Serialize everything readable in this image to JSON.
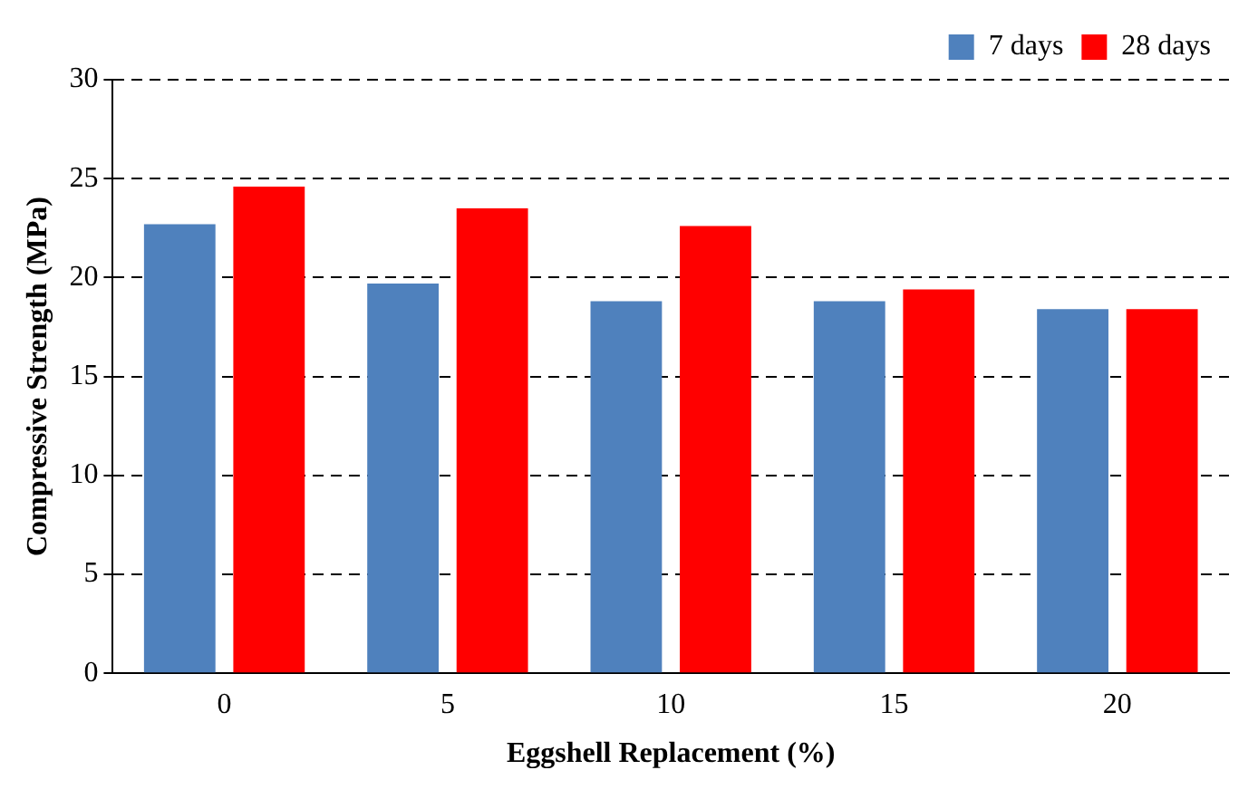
{
  "chart_data": {
    "type": "bar",
    "xlabel": "Eggshell Replacement (%)",
    "ylabel": "Compressive Strength (MPa)",
    "categories": [
      "0",
      "5",
      "10",
      "15",
      "20"
    ],
    "series": [
      {
        "name": "7 days",
        "color": "#4f81bd",
        "values": [
          22.7,
          19.7,
          18.8,
          18.8,
          18.4
        ]
      },
      {
        "name": "28 days",
        "color": "#ff0000",
        "values": [
          24.6,
          23.5,
          22.6,
          19.4,
          18.4
        ]
      }
    ],
    "ylim": [
      0,
      30
    ],
    "yticks": [
      0,
      5,
      10,
      15,
      20,
      25,
      30
    ],
    "grid": "y",
    "legend": "top right"
  }
}
